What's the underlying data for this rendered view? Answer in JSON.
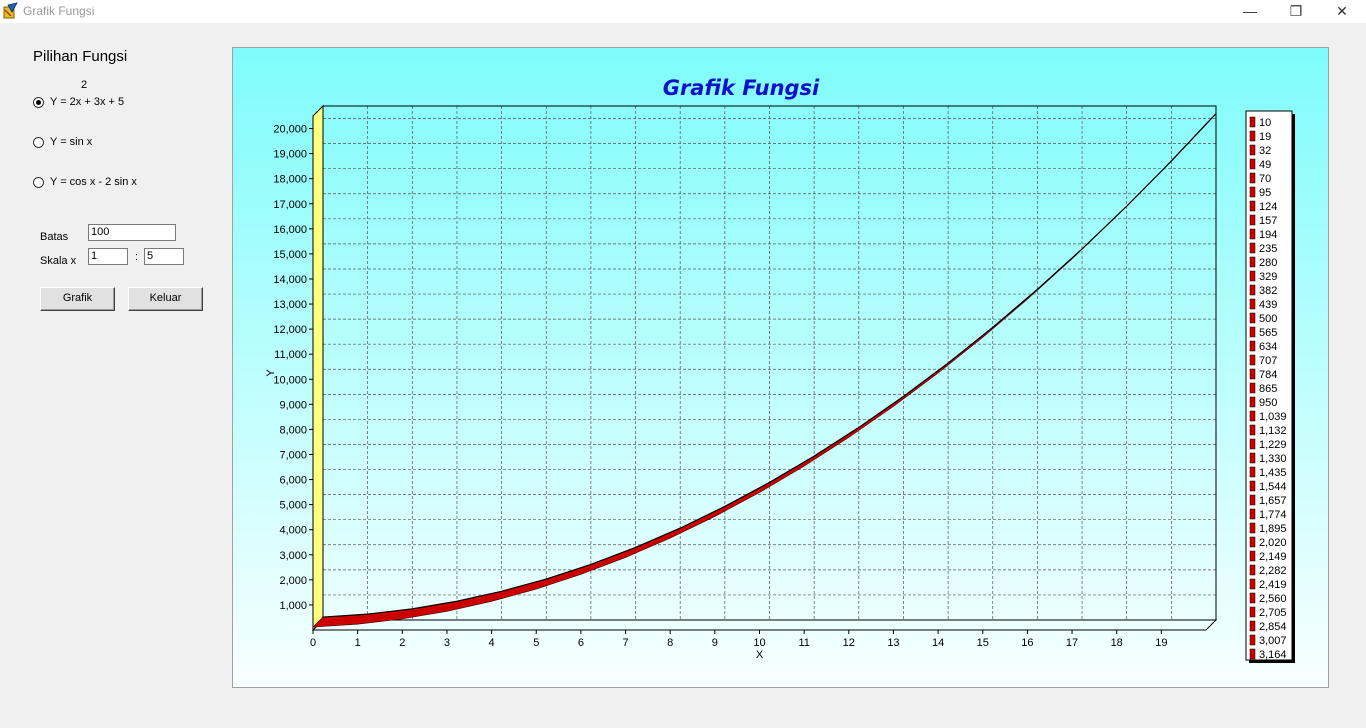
{
  "window": {
    "title": "Grafik Fungsi",
    "minimize_glyph": "—",
    "maximize_glyph": "❐",
    "close_glyph": "✕"
  },
  "panel": {
    "heading": "Pilihan Fungsi",
    "superscript": "2",
    "options": [
      {
        "label": "Y = 2x  + 3x + 5",
        "checked": true
      },
      {
        "label": "Y = sin x",
        "checked": false
      },
      {
        "label": "Y = cos x - 2 sin x",
        "checked": false
      }
    ],
    "batas_label": "Batas",
    "batas_value": "100",
    "skala_label": "Skala x",
    "skala_from": "1",
    "skala_sep": ":",
    "skala_to": "5",
    "grafik_button": "Grafik",
    "keluar_button": "Keluar"
  },
  "chart_data": {
    "type": "area",
    "title": "Grafik Fungsi",
    "xlabel": "X",
    "ylabel": "Y",
    "xlim": [
      0,
      20
    ],
    "ylim": [
      0,
      20500
    ],
    "x_ticks": [
      "0",
      "1",
      "2",
      "3",
      "4",
      "5",
      "6",
      "7",
      "8",
      "9",
      "10",
      "11",
      "12",
      "13",
      "14",
      "15",
      "16",
      "17",
      "18",
      "19"
    ],
    "y_ticks": [
      "1,000",
      "2,000",
      "3,000",
      "4,000",
      "5,000",
      "6,000",
      "7,000",
      "8,000",
      "9,000",
      "10,000",
      "11,000",
      "12,000",
      "13,000",
      "14,000",
      "15,000",
      "16,000",
      "17,000",
      "18,000",
      "19,000",
      "20,000"
    ],
    "grid": true,
    "legend_position": "right",
    "series": [
      {
        "function": "Y = 2x^2 + 3x + 5",
        "x": [
          0,
          1,
          2,
          3,
          4,
          5,
          6,
          7,
          8,
          9,
          10,
          11,
          12,
          13,
          14,
          15,
          16,
          17,
          18,
          19,
          20
        ],
        "values": [
          5,
          10,
          19,
          32,
          49,
          70,
          95,
          124,
          157,
          194,
          235,
          280,
          329,
          382,
          439,
          500,
          565,
          634,
          707,
          784,
          865
        ],
        "color": "#cc0000"
      }
    ],
    "legend_entries": [
      "10",
      "19",
      "32",
      "49",
      "70",
      "95",
      "124",
      "157",
      "194",
      "235",
      "280",
      "329",
      "382",
      "439",
      "500",
      "565",
      "634",
      "707",
      "784",
      "865",
      "950",
      "1,039",
      "1,132",
      "1,229",
      "1,330",
      "1,435",
      "1,544",
      "1,657",
      "1,774",
      "1,895",
      "2,020",
      "2,149",
      "2,282",
      "2,419",
      "2,560",
      "2,705",
      "2,854",
      "3,007",
      "3,164"
    ],
    "colors": {
      "background_top": "#7ffcfc",
      "background_bottom": "#f8ffff",
      "title": "#1010c8",
      "wall": "#ffff80",
      "series": "#cc0000"
    }
  }
}
